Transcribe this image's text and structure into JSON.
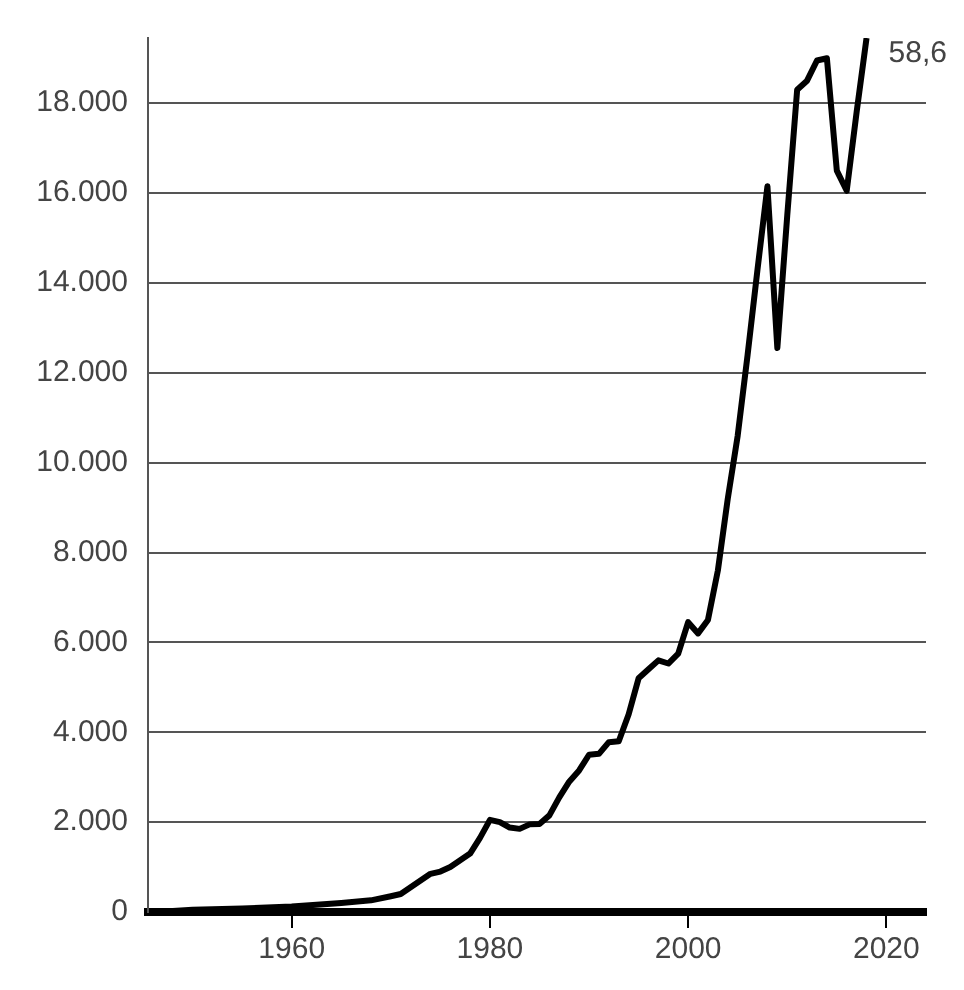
{
  "chart_data": {
    "type": "line",
    "x": [
      1948,
      1950,
      1955,
      1960,
      1965,
      1968,
      1970,
      1971,
      1972,
      1973,
      1974,
      1975,
      1976,
      1977,
      1978,
      1979,
      1980,
      1981,
      1982,
      1983,
      1984,
      1985,
      1986,
      1987,
      1988,
      1989,
      1990,
      1991,
      1992,
      1993,
      1994,
      1995,
      1996,
      1997,
      1998,
      1999,
      2000,
      2001,
      2002,
      2003,
      2004,
      2005,
      2006,
      2007,
      2008,
      2009,
      2010,
      2011,
      2012,
      2013,
      2014,
      2015,
      2016,
      2017,
      2018
    ],
    "series": [
      {
        "color": "#000000",
        "values": [
          20,
          50,
          80,
          120,
          200,
          260,
          350,
          400,
          550,
          700,
          850,
          900,
          1000,
          1150,
          1300,
          1650,
          2050,
          2000,
          1880,
          1850,
          1950,
          1960,
          2150,
          2550,
          2900,
          3150,
          3500,
          3520,
          3780,
          3800,
          4400,
          5200,
          5400,
          5600,
          5530,
          5750,
          6450,
          6200,
          6500,
          7600,
          9200,
          10600,
          12400,
          14300,
          16150,
          12550,
          15500,
          18300,
          18500,
          18950,
          19000,
          16500,
          16050,
          17800,
          19450
        ]
      }
    ],
    "xlim": [
      1945.5,
      2024
    ],
    "xticks": [
      1960,
      1980,
      2000,
      2020
    ],
    "yticks": [
      0,
      {
        "value": 2000,
        "label": "2.000"
      },
      {
        "value": 4000,
        "label": "4.000"
      },
      {
        "value": 6000,
        "label": "6.000"
      },
      {
        "value": 8000,
        "label": "8.000"
      },
      {
        "value": 10000,
        "label": "10.000"
      },
      {
        "value": 12000,
        "label": "12.000"
      },
      {
        "value": 14000,
        "label": "14.000"
      },
      {
        "value": 16000,
        "label": "16.000"
      },
      {
        "value": 18000,
        "label": "18.000"
      }
    ],
    "ylim": [
      0,
      19450
    ],
    "grid": "y",
    "legend": false,
    "marker": "none",
    "line_style": "solid",
    "annotations": [
      {
        "text": "58,6",
        "x": 2018,
        "y": 19450
      }
    ]
  }
}
